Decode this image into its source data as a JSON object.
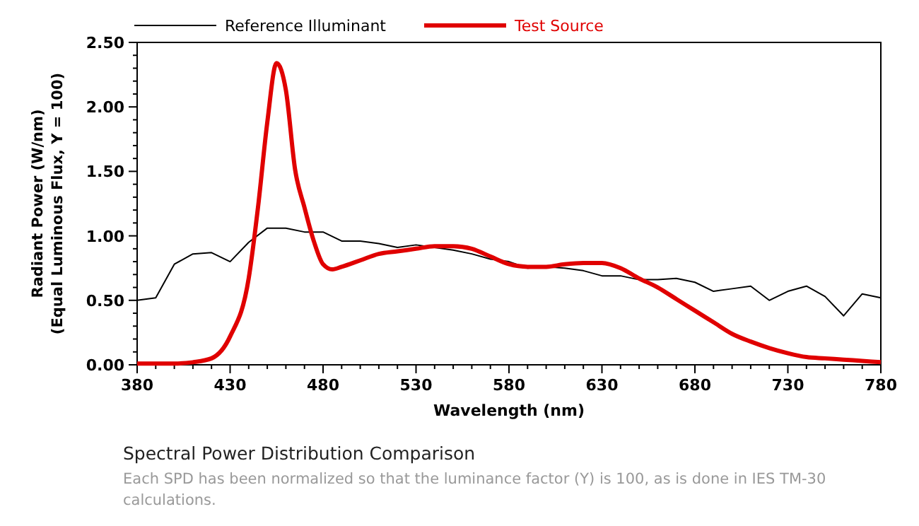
{
  "chart_data": {
    "type": "line",
    "title": "Spectral Power Distribution Comparison",
    "annotations": [
      "Each SPD has been normalized so that the  luminance factor (Y) is 100, as is done in IES TM-30 calculations."
    ],
    "xlabel": "Wavelength (nm)",
    "ylabel": "Radiant Power (W/nm)\n(Equal Luminous Flux, Y = 100)",
    "xlim": [
      380,
      780
    ],
    "ylim": [
      0,
      2.5
    ],
    "xticks": [
      380,
      {
        "value": 390,
        "label": null
      },
      {
        "value": 400,
        "label": null
      },
      {
        "value": 410,
        "label": null
      },
      {
        "value": 420,
        "label": null
      },
      430,
      {
        "value": 440,
        "label": null
      },
      {
        "value": 450,
        "label": null
      },
      {
        "value": 460,
        "label": null
      },
      {
        "value": 470,
        "label": null
      },
      480,
      {
        "value": 490,
        "label": null
      },
      {
        "value": 500,
        "label": null
      },
      {
        "value": 510,
        "label": null
      },
      {
        "value": 520,
        "label": null
      },
      530,
      {
        "value": 540,
        "label": null
      },
      {
        "value": 550,
        "label": null
      },
      {
        "value": 560,
        "label": null
      },
      {
        "value": 570,
        "label": null
      },
      580,
      {
        "value": 590,
        "label": null
      },
      {
        "value": 600,
        "label": null
      },
      {
        "value": 610,
        "label": null
      },
      {
        "value": 620,
        "label": null
      },
      630,
      {
        "value": 640,
        "label": null
      },
      {
        "value": 650,
        "label": null
      },
      {
        "value": 660,
        "label": null
      },
      {
        "value": 670,
        "label": null
      },
      680,
      {
        "value": 690,
        "label": null
      },
      {
        "value": 700,
        "label": null
      },
      {
        "value": 710,
        "label": null
      },
      {
        "value": 720,
        "label": null
      },
      730,
      {
        "value": 740,
        "label": null
      },
      {
        "value": 750,
        "label": null
      },
      {
        "value": 760,
        "label": null
      },
      {
        "value": 770,
        "label": null
      },
      780
    ],
    "yticks": [
      {
        "value": 0,
        "label": "0.00"
      },
      {
        "value": 0.1,
        "label": null
      },
      {
        "value": 0.2,
        "label": null
      },
      {
        "value": 0.3,
        "label": null
      },
      {
        "value": 0.4,
        "label": null
      },
      {
        "value": 0.5,
        "label": "0.50"
      },
      {
        "value": 0.6,
        "label": null
      },
      {
        "value": 0.7,
        "label": null
      },
      {
        "value": 0.8,
        "label": null
      },
      {
        "value": 0.9,
        "label": null
      },
      {
        "value": 1,
        "label": "1.00"
      },
      {
        "value": 1.1,
        "label": null
      },
      {
        "value": 1.2,
        "label": null
      },
      {
        "value": 1.3,
        "label": null
      },
      {
        "value": 1.4,
        "label": null
      },
      {
        "value": 1.5,
        "label": "1.50"
      },
      {
        "value": 1.6,
        "label": null
      },
      {
        "value": 1.7,
        "label": null
      },
      {
        "value": 1.8,
        "label": null
      },
      {
        "value": 1.9,
        "label": null
      },
      {
        "value": 2,
        "label": "2.00"
      },
      {
        "value": 2.1,
        "label": null
      },
      {
        "value": 2.2,
        "label": null
      },
      {
        "value": 2.3,
        "label": null
      },
      {
        "value": 2.4,
        "label": null
      },
      {
        "value": 2.5,
        "label": "2.50"
      }
    ],
    "legend": "top",
    "grid": false,
    "series": [
      {
        "name": "Reference Illuminant",
        "color": "#000000",
        "x": [
          380,
          390,
          400,
          410,
          420,
          430,
          440,
          450,
          460,
          470,
          480,
          490,
          500,
          510,
          520,
          530,
          540,
          550,
          560,
          570,
          580,
          590,
          600,
          610,
          620,
          630,
          640,
          650,
          660,
          670,
          680,
          690,
          700,
          710,
          720,
          730,
          740,
          750,
          760,
          770,
          780
        ],
        "values": [
          0.5,
          0.52,
          0.78,
          0.86,
          0.87,
          0.8,
          0.95,
          1.06,
          1.06,
          1.03,
          1.03,
          0.96,
          0.96,
          0.94,
          0.91,
          0.93,
          0.91,
          0.89,
          0.86,
          0.82,
          0.8,
          0.75,
          0.76,
          0.75,
          0.73,
          0.69,
          0.69,
          0.66,
          0.66,
          0.67,
          0.64,
          0.57,
          0.59,
          0.61,
          0.5,
          0.57,
          0.61,
          0.53,
          0.38,
          0.55,
          0.52
        ]
      },
      {
        "name": "Test Source",
        "color": "#e00000",
        "x": [
          380,
          390,
          400,
          410,
          420,
          430,
          440,
          445,
          450,
          455,
          460,
          465,
          470,
          475,
          480,
          485,
          490,
          500,
          510,
          520,
          530,
          540,
          550,
          560,
          570,
          580,
          590,
          600,
          610,
          620,
          630,
          640,
          650,
          660,
          670,
          680,
          690,
          700,
          710,
          720,
          730,
          740,
          750,
          760,
          770,
          780
        ],
        "values": [
          0.01,
          0.01,
          0.01,
          0.02,
          0.05,
          0.22,
          0.67,
          1.22,
          1.88,
          2.34,
          2.13,
          1.51,
          1.22,
          0.96,
          0.78,
          0.74,
          0.76,
          0.81,
          0.86,
          0.88,
          0.9,
          0.92,
          0.92,
          0.9,
          0.84,
          0.78,
          0.76,
          0.76,
          0.78,
          0.79,
          0.79,
          0.75,
          0.67,
          0.6,
          0.51,
          0.42,
          0.33,
          0.24,
          0.18,
          0.13,
          0.09,
          0.06,
          0.05,
          0.04,
          0.03,
          0.02
        ]
      }
    ]
  }
}
